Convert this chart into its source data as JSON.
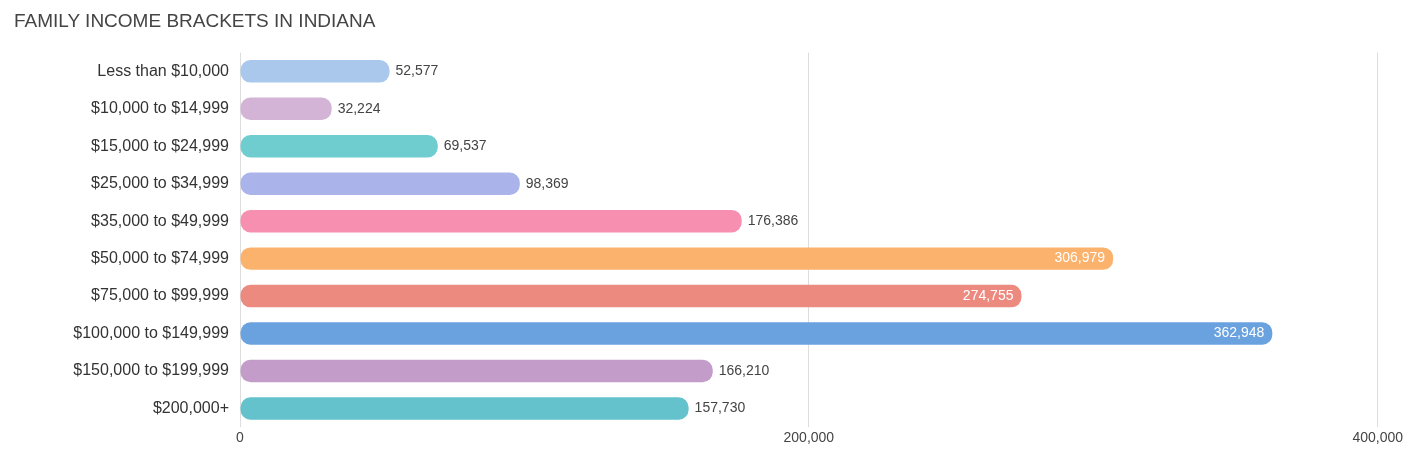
{
  "chart_data": {
    "type": "bar",
    "orientation": "horizontal",
    "title": "FAMILY INCOME BRACKETS IN INDIANA",
    "categories": [
      "Less than $10,000",
      "$10,000 to $14,999",
      "$15,000 to $24,999",
      "$25,000 to $34,999",
      "$35,000 to $49,999",
      "$50,000 to $74,999",
      "$75,000 to $99,999",
      "$100,000 to $149,999",
      "$150,000 to $199,999",
      "$200,000+"
    ],
    "values": [
      52577,
      32224,
      69537,
      98369,
      176386,
      306979,
      274755,
      362948,
      166210,
      157730
    ],
    "colors": [
      "#a9c8ec",
      "#d3b3d6",
      "#6fcdd0",
      "#aab3ea",
      "#f68fb0",
      "#fbb26c",
      "#ec8a80",
      "#6aa2e0",
      "#c39cca",
      "#63c2cb"
    ],
    "value_labels": [
      "52,577",
      "32,224",
      "69,537",
      "98,369",
      "176,386",
      "306,979",
      "274,755",
      "362,948",
      "166,210",
      "157,730"
    ],
    "xlim": [
      0,
      400000
    ],
    "xticks": [
      0,
      {
        "value": 200000,
        "label": "200,000"
      },
      {
        "value": 400000,
        "label": "400,000"
      }
    ],
    "grid": "x"
  }
}
